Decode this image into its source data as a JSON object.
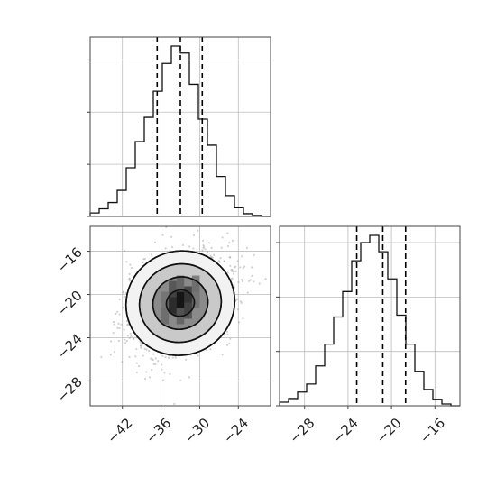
{
  "chart_data": [
    {
      "type": "histogram",
      "panel": "top-left",
      "xlim": [
        -47,
        -19
      ],
      "x_ticks": [
        -42,
        -36,
        -30,
        -24
      ],
      "y_ticks": [
        0,
        150,
        300,
        450
      ],
      "grid": true,
      "quantile_lines": [
        -36.6,
        -33.0,
        -29.6
      ],
      "bin_edges": [
        -47,
        -45.6,
        -44.2,
        -42.8,
        -41.4,
        -40.0,
        -38.6,
        -37.2,
        -35.8,
        -34.4,
        -33.0,
        -31.6,
        -30.2,
        -28.8,
        -27.4,
        -26.0,
        -24.6,
        -23.2,
        -21.8,
        -20.4,
        -19.0
      ],
      "counts": [
        10,
        22,
        40,
        75,
        140,
        215,
        285,
        360,
        440,
        490,
        470,
        380,
        280,
        205,
        115,
        60,
        25,
        8,
        3,
        0
      ]
    },
    {
      "type": "heatmap",
      "subtype": "2d-density-with-contours",
      "panel": "bottom-left",
      "xlim": [
        -47,
        -19
      ],
      "ylim": [
        -30.3,
        -13.7
      ],
      "x_ticks": [
        -42,
        -36,
        -30,
        -24
      ],
      "y_ticks": [
        -16,
        -20,
        -24,
        -28
      ],
      "grid": true,
      "mean": [
        -33.0,
        -20.8
      ],
      "contour_levels": [
        {
          "level": "0.5-sigma",
          "rx": 2.2,
          "ry": 1.2
        },
        {
          "level": "1-sigma",
          "rx": 4.3,
          "ry": 2.4
        },
        {
          "level": "1.5-sigma",
          "rx": 6.4,
          "ry": 3.6
        },
        {
          "level": "2-sigma",
          "rx": 8.5,
          "ry": 4.8
        }
      ],
      "density_cells": [
        {
          "x": -33.0,
          "y": -20.5,
          "d": 1.0
        },
        {
          "x": -34.2,
          "y": -21.0,
          "d": 0.85
        },
        {
          "x": -31.8,
          "y": -20.0,
          "d": 0.8
        },
        {
          "x": -34.2,
          "y": -19.5,
          "d": 0.7
        },
        {
          "x": -31.8,
          "y": -21.5,
          "d": 0.7
        },
        {
          "x": -35.4,
          "y": -22.0,
          "d": 0.55
        },
        {
          "x": -30.6,
          "y": -19.0,
          "d": 0.55
        },
        {
          "x": -33.0,
          "y": -22.0,
          "d": 0.6
        },
        {
          "x": -33.0,
          "y": -19.0,
          "d": 0.6
        },
        {
          "x": -35.4,
          "y": -20.5,
          "d": 0.5
        },
        {
          "x": -30.6,
          "y": -20.5,
          "d": 0.5
        }
      ]
    },
    {
      "type": "histogram",
      "panel": "bottom-right",
      "xlim": [
        -30.3,
        -13.7
      ],
      "x_ticks": [
        -28,
        -24,
        -20,
        -16
      ],
      "y_ticks": [
        0,
        150,
        300,
        450
      ],
      "grid": true,
      "quantile_lines": [
        -23.2,
        -20.8,
        -18.7
      ],
      "bin_edges": [
        -30.3,
        -29.47,
        -28.64,
        -27.81,
        -26.98,
        -26.15,
        -25.32,
        -24.49,
        -23.66,
        -22.83,
        -22.0,
        -21.17,
        -20.34,
        -19.51,
        -18.68,
        -17.85,
        -17.02,
        -16.19,
        -15.36,
        -14.53,
        -13.7
      ],
      "counts": [
        10,
        20,
        38,
        60,
        110,
        170,
        245,
        315,
        400,
        450,
        470,
        425,
        350,
        250,
        170,
        95,
        45,
        18,
        5,
        0
      ]
    }
  ]
}
